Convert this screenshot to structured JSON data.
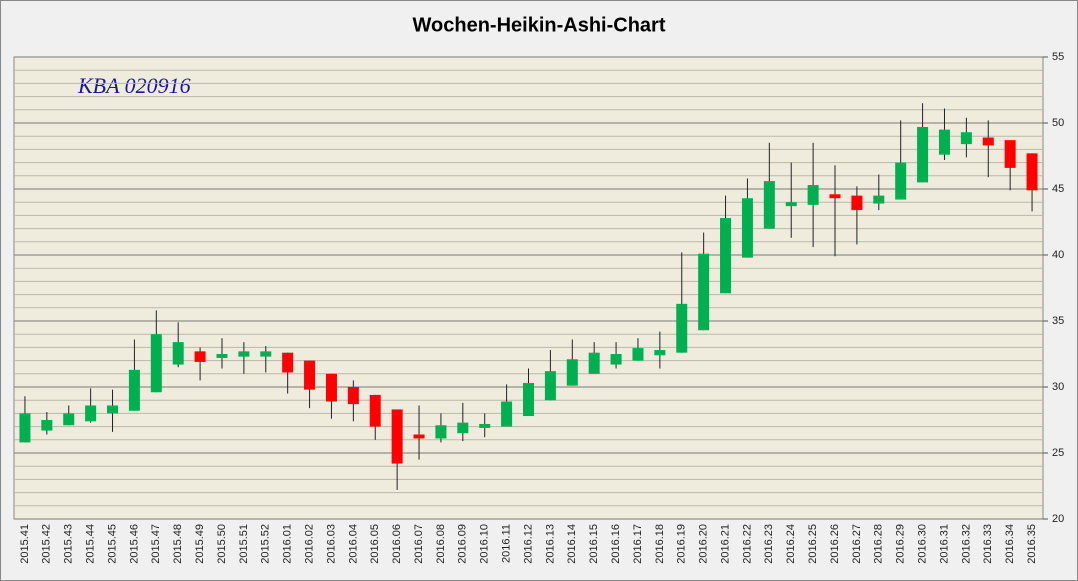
{
  "chart_data": {
    "type": "candlestick",
    "title": "Wochen-Heikin-Ashi-Chart",
    "annotation": "KBA 020916",
    "categories": [
      "2015.41",
      "2015.42",
      "2015.43",
      "2015.44",
      "2015.45",
      "2015.46",
      "2015.47",
      "2015.48",
      "2015.49",
      "2015.50",
      "2015.51",
      "2015.52",
      "2016.01",
      "2016.02",
      "2016.03",
      "2016.04",
      "2016.05",
      "2016.06",
      "2016.07",
      "2016.08",
      "2016.09",
      "2016.10",
      "2016.11",
      "2016.12",
      "2016.13",
      "2016.14",
      "2016.15",
      "2016.16",
      "2016.17",
      "2016.18",
      "2016.19",
      "2016.20",
      "2016.21",
      "2016.22",
      "2016.23",
      "2016.24",
      "2016.25",
      "2016.26",
      "2016.27",
      "2016.28",
      "2016.29",
      "2016.30",
      "2016.31",
      "2016.32",
      "2016.33",
      "2016.34",
      "2016.35"
    ],
    "open": [
      25.8,
      26.7,
      27.1,
      27.4,
      28.0,
      28.2,
      29.6,
      31.7,
      32.7,
      32.2,
      32.3,
      32.3,
      32.6,
      32.0,
      31.0,
      30.0,
      29.4,
      28.3,
      26.4,
      26.1,
      26.5,
      26.9,
      27.0,
      27.8,
      29.0,
      30.1,
      31.0,
      31.7,
      32.0,
      32.4,
      32.6,
      34.3,
      37.1,
      39.8,
      42.0,
      43.7,
      43.8,
      44.6,
      44.5,
      43.9,
      44.2,
      45.5,
      47.6,
      48.4,
      48.9,
      48.7,
      47.7
    ],
    "high": [
      29.3,
      28.1,
      28.6,
      29.9,
      29.8,
      33.6,
      35.8,
      34.9,
      33.0,
      33.7,
      33.4,
      33.1,
      32.6,
      32.0,
      31.0,
      30.5,
      29.4,
      28.3,
      28.6,
      28.0,
      28.8,
      28.0,
      30.2,
      31.4,
      32.8,
      33.6,
      33.4,
      33.4,
      33.7,
      34.2,
      40.2,
      41.7,
      44.5,
      45.8,
      48.5,
      47.0,
      48.5,
      46.8,
      45.2,
      46.1,
      50.2,
      51.5,
      51.1,
      50.4,
      50.2,
      48.7,
      47.7
    ],
    "low": [
      25.8,
      26.4,
      27.1,
      27.3,
      26.6,
      28.2,
      29.6,
      31.5,
      30.5,
      31.4,
      31.0,
      31.1,
      29.5,
      28.4,
      27.6,
      27.4,
      26.0,
      22.2,
      24.5,
      25.8,
      25.9,
      26.2,
      27.0,
      27.8,
      29.0,
      30.1,
      31.0,
      31.4,
      32.0,
      31.4,
      32.6,
      34.3,
      37.1,
      39.8,
      42.0,
      41.3,
      40.6,
      39.9,
      40.8,
      43.4,
      44.2,
      45.5,
      47.2,
      47.4,
      45.9,
      44.9,
      43.3
    ],
    "close": [
      28.0,
      27.5,
      28.0,
      28.6,
      28.6,
      31.3,
      34.0,
      33.4,
      31.9,
      32.5,
      32.7,
      32.7,
      31.1,
      29.8,
      28.9,
      28.7,
      27.0,
      24.2,
      26.1,
      27.1,
      27.3,
      27.2,
      28.9,
      30.3,
      31.2,
      32.1,
      32.6,
      32.5,
      32.95,
      32.8,
      36.3,
      40.1,
      42.8,
      44.3,
      45.6,
      44.0,
      45.3,
      44.3,
      43.4,
      44.5,
      47.0,
      49.7,
      49.5,
      49.3,
      48.3,
      46.6,
      44.9
    ],
    "up_color": "#00b050",
    "down_color": "#ff0000",
    "ylim": [
      20,
      55
    ],
    "yticks": [
      20,
      25,
      30,
      35,
      40,
      45,
      50,
      55
    ],
    "grid": true,
    "minor_grid_step": 1,
    "y_axis_side": "right"
  }
}
